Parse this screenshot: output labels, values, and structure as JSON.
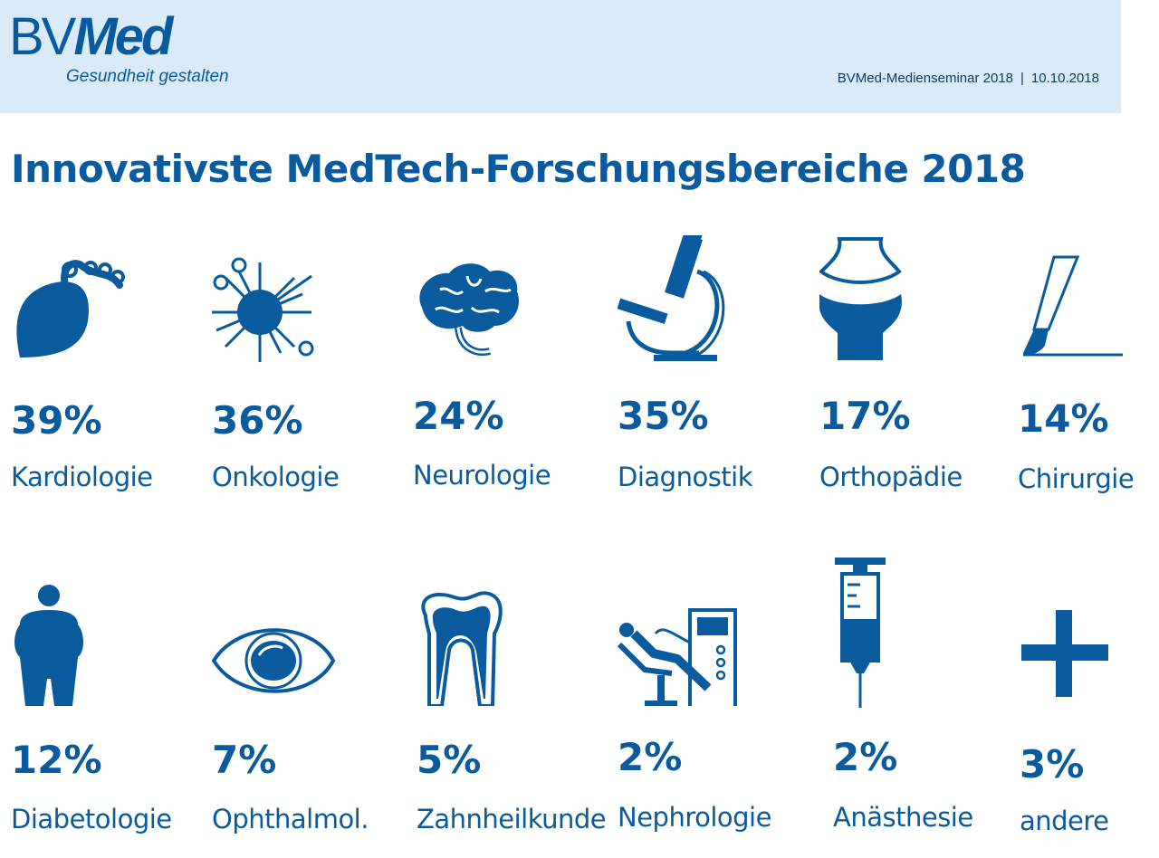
{
  "header": {
    "logo_bv": "BV",
    "logo_med": "Med",
    "tagline": "Gesundheit gestalten",
    "event": "BVMed-Medienseminar 2018",
    "separator": "|",
    "date": "10.10.2018"
  },
  "title": "Innovativste MedTech-Forschungsbereiche 2018",
  "colors": {
    "brand": "#0a5a9e",
    "header_bg": "#d9ebf8"
  },
  "areas": [
    {
      "icon": "heart-icon",
      "percent": "39%",
      "value": 39,
      "label": "Kardiologie"
    },
    {
      "icon": "cancer-cell-icon",
      "percent": "36%",
      "value": 36,
      "label": "Onkologie"
    },
    {
      "icon": "brain-icon",
      "percent": "24%",
      "value": 24,
      "label": "Neurologie"
    },
    {
      "icon": "microscope-icon",
      "percent": "35%",
      "value": 35,
      "label": "Diagnostik"
    },
    {
      "icon": "joint-icon",
      "percent": "17%",
      "value": 17,
      "label": "Orthopädie"
    },
    {
      "icon": "scalpel-icon",
      "percent": "14%",
      "value": 14,
      "label": "Chirurgie"
    },
    {
      "icon": "person-icon",
      "percent": "12%",
      "value": 12,
      "label": "Diabetologie"
    },
    {
      "icon": "eye-icon",
      "percent": "7%",
      "value": 7,
      "label": "Ophthalmol."
    },
    {
      "icon": "tooth-icon",
      "percent": "5%",
      "value": 5,
      "label": "Zahnheilkunde"
    },
    {
      "icon": "dialysis-icon",
      "percent": "2%",
      "value": 2,
      "label": "Nephrologie"
    },
    {
      "icon": "syringe-icon",
      "percent": "2%",
      "value": 2,
      "label": "Anästhesie"
    },
    {
      "icon": "plus-icon",
      "percent": "3%",
      "value": 3,
      "label": "andere"
    }
  ]
}
